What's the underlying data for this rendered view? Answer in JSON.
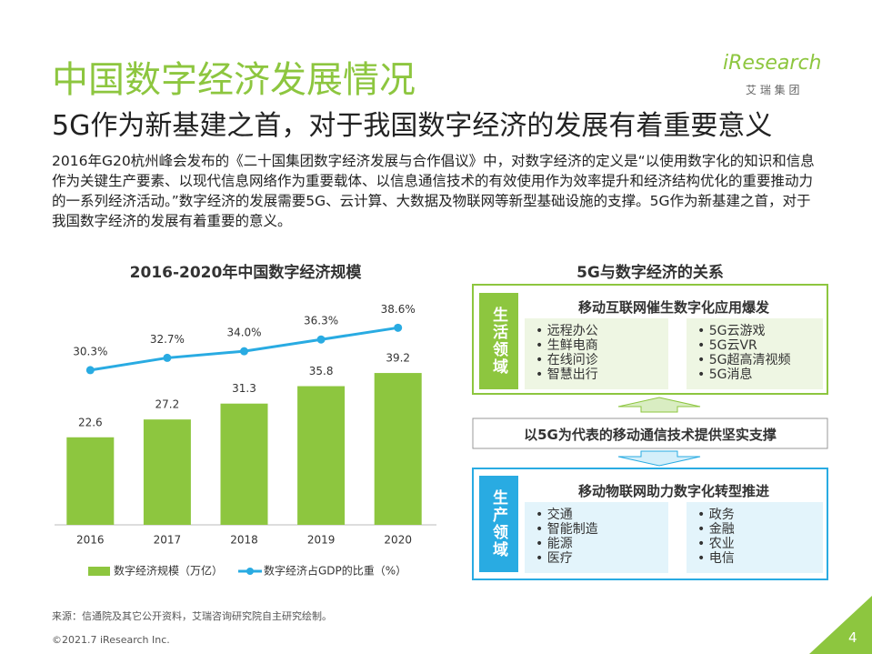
{
  "header": {
    "title": "中国数字经济发展情况",
    "subtitle": "5G作为新基建之首，对于我国数字经济的发展有着重要意义",
    "logo": "iResearch",
    "logo_sub": "艾 瑞 集 团"
  },
  "body_text": "2016年G20杭州峰会发布的《二十国集团数字经济发展与合作倡议》中，对数字经济的定义是“以使用数字化的知识和信息作为关键生产要素、以现代信息网络作为重要载体、以信息通信技术的有效使用作为效率提升和经济结构优化的重要推动力的一系列经济活动。”数字经济的发展需要5G、云计算、大数据及物联网等新型基础设施的支撑。5G作为新基建之首，对于我国数字经济的发展有着重要的意义。",
  "chart_data": {
    "type": "bar",
    "title": "2016-2020年中国数字经济规模",
    "categories": [
      "2016",
      "2017",
      "2018",
      "2019",
      "2020"
    ],
    "series": [
      {
        "name": "数字经济规模（万亿）",
        "type": "bar",
        "color": "#8dc63f",
        "values": [
          22.6,
          27.2,
          31.3,
          35.8,
          39.2
        ]
      },
      {
        "name": "数字经济占GDP的比重（%）",
        "type": "line",
        "axis": "y2",
        "color": "#29abe2",
        "values": [
          30.3,
          32.7,
          34.0,
          36.3,
          38.6
        ],
        "value_labels": [
          "30.3%",
          "32.7%",
          "34.0%",
          "36.3%",
          "38.6%"
        ]
      }
    ],
    "ylim": [
      0,
      58
    ],
    "y2lim": [
      0,
      44
    ],
    "legend": "bottom"
  },
  "diagram": {
    "title": "5G与数字经济的关系",
    "top": {
      "side": "生活领域",
      "heading": "移动互联网催生数字化应用爆发",
      "left": [
        "远程办公",
        "生鲜电商",
        "在线问诊",
        "智慧出行"
      ],
      "right": [
        "5G云游戏",
        "5G云VR",
        "5G超高清视频",
        "5G消息"
      ]
    },
    "middle": "以5G为代表的移动通信技术提供坚实支撑",
    "bottom": {
      "side": "生产领域",
      "heading": "移动物联网助力数字化转型推进",
      "left": [
        "交通",
        "智能制造",
        "能源",
        "医疗"
      ],
      "right": [
        "政务",
        "金融",
        "农业",
        "电信"
      ]
    }
  },
  "footer": {
    "source": "来源：信通院及其它公开资料，艾瑞咨询研究院自主研究绘制。",
    "copyright": "©2021.7 iResearch Inc.",
    "page": "4"
  }
}
